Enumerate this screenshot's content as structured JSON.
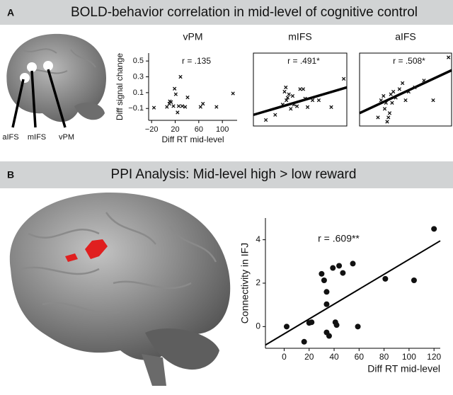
{
  "panels": {
    "a": {
      "letter": "A",
      "title": "BOLD-behavior correlation in mid-level of cognitive control",
      "brain_labels": [
        "aIFS",
        "mIFS",
        "vPM"
      ]
    },
    "b": {
      "letter": "B",
      "title": "PPI Analysis: Mid-level high > low reward"
    }
  },
  "chart_data": [
    {
      "type": "scatter",
      "title": "vPM",
      "annotation": "r = .135",
      "marker": "x",
      "color": "#111111",
      "x_label": "Diff RT mid-level",
      "y_label": "Diff signal change",
      "x": [
        -16,
        6,
        10,
        11,
        13,
        17,
        19,
        21,
        24,
        26,
        29,
        32,
        37,
        41,
        63,
        67,
        90,
        118
      ],
      "values": [
        -0.09,
        -0.08,
        -0.04,
        -0.01,
        -0.02,
        -0.07,
        0.15,
        0.08,
        -0.15,
        -0.07,
        0.3,
        -0.07,
        -0.08,
        0.04,
        -0.08,
        -0.04,
        -0.08,
        0.09
      ],
      "xlim": [
        -25,
        125
      ],
      "ylim": [
        -0.25,
        0.6
      ],
      "xticks": [
        {
          "value": -20,
          "label": "−20"
        },
        20,
        60,
        100
      ],
      "yticks": [
        0.5,
        0.3,
        0.1,
        {
          "value": -0.1,
          "label": "−0.1"
        }
      ]
    },
    {
      "type": "scatter",
      "title": "mIFS",
      "annotation": "r = .491*",
      "marker": "x",
      "color": "#111111",
      "x": [
        -5,
        10,
        22,
        25,
        27,
        28,
        30,
        32,
        35,
        38,
        40,
        45,
        50,
        55,
        58,
        62,
        70,
        80,
        100,
        120
      ],
      "values": [
        -0.18,
        -0.12,
        0.0,
        0.15,
        0.2,
        0.05,
        0.08,
        0.12,
        -0.05,
        0.1,
        0.0,
        -0.02,
        0.18,
        0.18,
        0.07,
        -0.03,
        0.05,
        0.05,
        -0.03,
        0.3
      ],
      "fit_line": {
        "x": [
          -25,
          125
        ],
        "y": [
          -0.12,
          0.2
        ]
      },
      "xlim": [
        -25,
        125
      ],
      "ylim": [
        -0.25,
        0.6
      ]
    },
    {
      "type": "scatter",
      "title": "aIFS",
      "annotation": "r = .508*",
      "marker": "x",
      "color": "#111111",
      "x": [
        5,
        10,
        14,
        16,
        18,
        20,
        22,
        24,
        26,
        28,
        30,
        34,
        40,
        45,
        50,
        55,
        65,
        80,
        95,
        120
      ],
      "values": [
        -0.15,
        0.05,
        0.1,
        -0.05,
        0.02,
        -0.2,
        -0.15,
        -0.1,
        0.12,
        0.02,
        0.15,
        0.08,
        0.18,
        0.25,
        0.05,
        0.15,
        0.2,
        0.28,
        0.05,
        0.55
      ],
      "fit_line": {
        "x": [
          -25,
          125
        ],
        "y": [
          -0.1,
          0.4
        ]
      },
      "xlim": [
        -25,
        125
      ],
      "ylim": [
        -0.25,
        0.6
      ]
    },
    {
      "type": "scatter",
      "annotation": "r = .609**",
      "marker": "circle",
      "color": "#111111",
      "x_label": "Diff RT mid-level",
      "y_label": "Connectivity in IFJ",
      "x": [
        2,
        16,
        20,
        22,
        30,
        32,
        34,
        34,
        34,
        36,
        39,
        44,
        41,
        42,
        47,
        55,
        59,
        81,
        104,
        120
      ],
      "values": [
        0,
        -0.7,
        0.17,
        0.2,
        2.43,
        2.13,
        -0.27,
        1.03,
        1.6,
        -0.43,
        2.7,
        2.8,
        0.2,
        0.07,
        2.47,
        2.9,
        0,
        2.2,
        2.13,
        4.5
      ],
      "fit_line": {
        "x": [
          -15,
          125
        ],
        "y": [
          -0.85,
          3.95
        ]
      },
      "xlim": [
        -15,
        125
      ],
      "ylim": [
        -1,
        5
      ],
      "xticks": [
        0,
        20,
        40,
        60,
        80,
        100,
        120
      ],
      "yticks": [
        0,
        2,
        4
      ]
    }
  ]
}
